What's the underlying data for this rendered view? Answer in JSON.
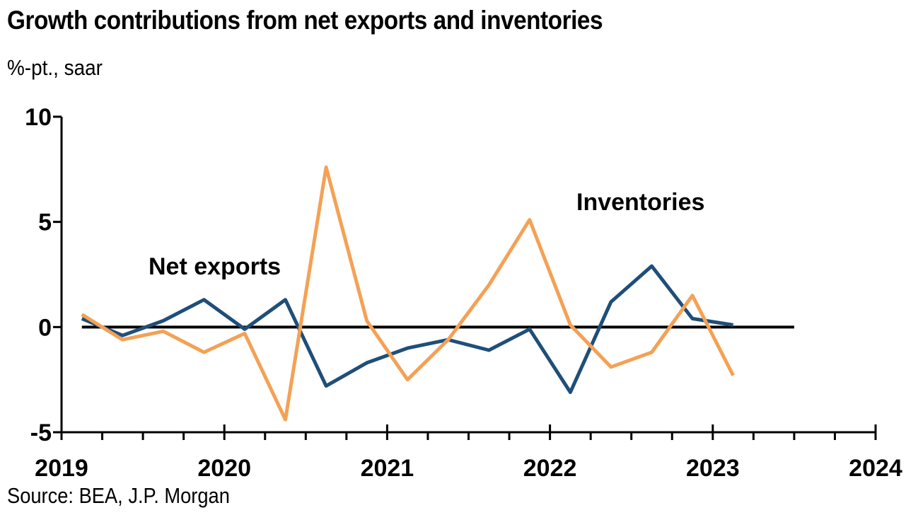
{
  "title": "Growth contributions from net exports and inventories",
  "subtitle": "%-pt., saar",
  "source": "Source: BEA, J.P. Morgan",
  "chart_data": {
    "type": "line",
    "title": "Growth contributions from net exports and inventories",
    "subtitle": "%-pt., saar",
    "ylim": [
      -5,
      10
    ],
    "yticks": [
      10,
      5,
      0,
      -5
    ],
    "xlim": [
      2019.0,
      2024.0
    ],
    "xticks": [
      2019,
      2020,
      2021,
      2022,
      2023,
      2024
    ],
    "grid": false,
    "x": [
      2019.125,
      2019.375,
      2019.625,
      2019.875,
      2020.125,
      2020.375,
      2020.625,
      2020.875,
      2021.125,
      2021.375,
      2021.625,
      2021.875,
      2022.125,
      2022.375,
      2022.625,
      2022.875,
      2023.125
    ],
    "series": [
      {
        "name": "Net exports",
        "color": "#1f4e79",
        "values": [
          0.4,
          -0.4,
          0.3,
          1.3,
          -0.1,
          1.3,
          -2.8,
          -1.7,
          -1.0,
          -0.6,
          -1.1,
          -0.1,
          -3.1,
          1.2,
          2.9,
          0.4,
          0.1
        ]
      },
      {
        "name": "Inventories",
        "color": "#f4a155",
        "values": [
          0.6,
          -0.6,
          -0.2,
          -1.2,
          -0.3,
          -4.4,
          7.6,
          0.3,
          -2.5,
          -0.6,
          2.0,
          5.1,
          0.1,
          -1.9,
          -1.2,
          1.5,
          -2.3
        ]
      }
    ],
    "annotations": [
      {
        "text": "Net exports",
        "series": "Net exports"
      },
      {
        "text": "Inventories",
        "series": "Inventories"
      }
    ]
  }
}
